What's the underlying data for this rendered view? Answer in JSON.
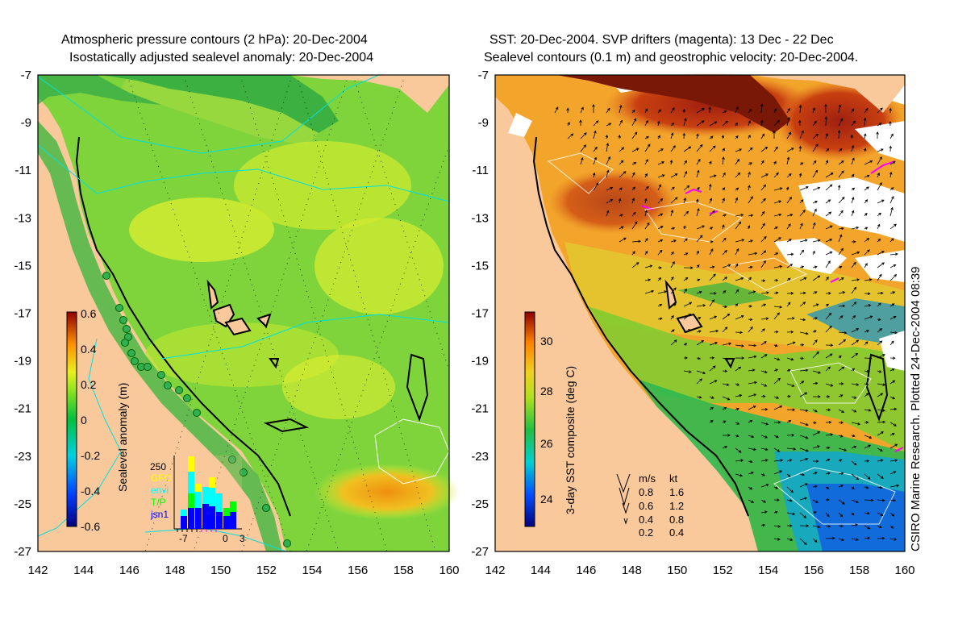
{
  "left_panel": {
    "title_line1": "Atmospheric pressure contours (2 hPa): 20-Dec-2004",
    "title_line2": "Isostatically adjusted sealevel anomaly: 20-Dec-2004",
    "colorbar_label": "Sealevel anomaly (m)",
    "colorbar_ticks": [
      "0.6",
      "0.4",
      "0.2",
      "0",
      "-0.2",
      "-0.4",
      "-0.6"
    ],
    "inset": {
      "ymax_label": "250",
      "legend": [
        {
          "label": "GFO",
          "color": "#ffff00"
        },
        {
          "label": "envi",
          "color": "#00ffff"
        },
        {
          "label": "T/P",
          "color": "#00ff00"
        },
        {
          "label": "jsn1",
          "color": "#0000ff"
        }
      ],
      "x_ticks": [
        "-7",
        "0",
        "3"
      ]
    }
  },
  "right_panel": {
    "title_line1": "SST: 20-Dec-2004. SVP drifters (magenta): 13 Dec - 22 Dec",
    "title_line2": "Sealevel contours (0.1 m) and geostrophic velocity: 20-Dec-2004.",
    "colorbar_label": "3-day SST composite (deg C)",
    "colorbar_ticks": [
      "30",
      "28",
      "26",
      "24"
    ],
    "velocity_legend": {
      "header_ms": "m/s",
      "header_kt": "kt",
      "rows": [
        {
          "ms": "0.8",
          "kt": "1.6"
        },
        {
          "ms": "0.6",
          "kt": "1.2"
        },
        {
          "ms": "0.4",
          "kt": "0.8"
        },
        {
          "ms": "0.2",
          "kt": "0.4"
        }
      ]
    },
    "credit": "CSIRO Marine Research. Plotted 24-Dec-2004 08:39"
  },
  "axes": {
    "y_ticks": [
      "-7",
      "-9",
      "-11",
      "-13",
      "-15",
      "-17",
      "-19",
      "-21",
      "-23",
      "-25",
      "-27"
    ],
    "x_ticks": [
      "142",
      "144",
      "146",
      "148",
      "150",
      "152",
      "154",
      "156",
      "158",
      "160"
    ]
  },
  "colors": {
    "land": "#f9c89b",
    "sla_green": "#7fd43c",
    "sst_orange": "#f2a52a"
  }
}
